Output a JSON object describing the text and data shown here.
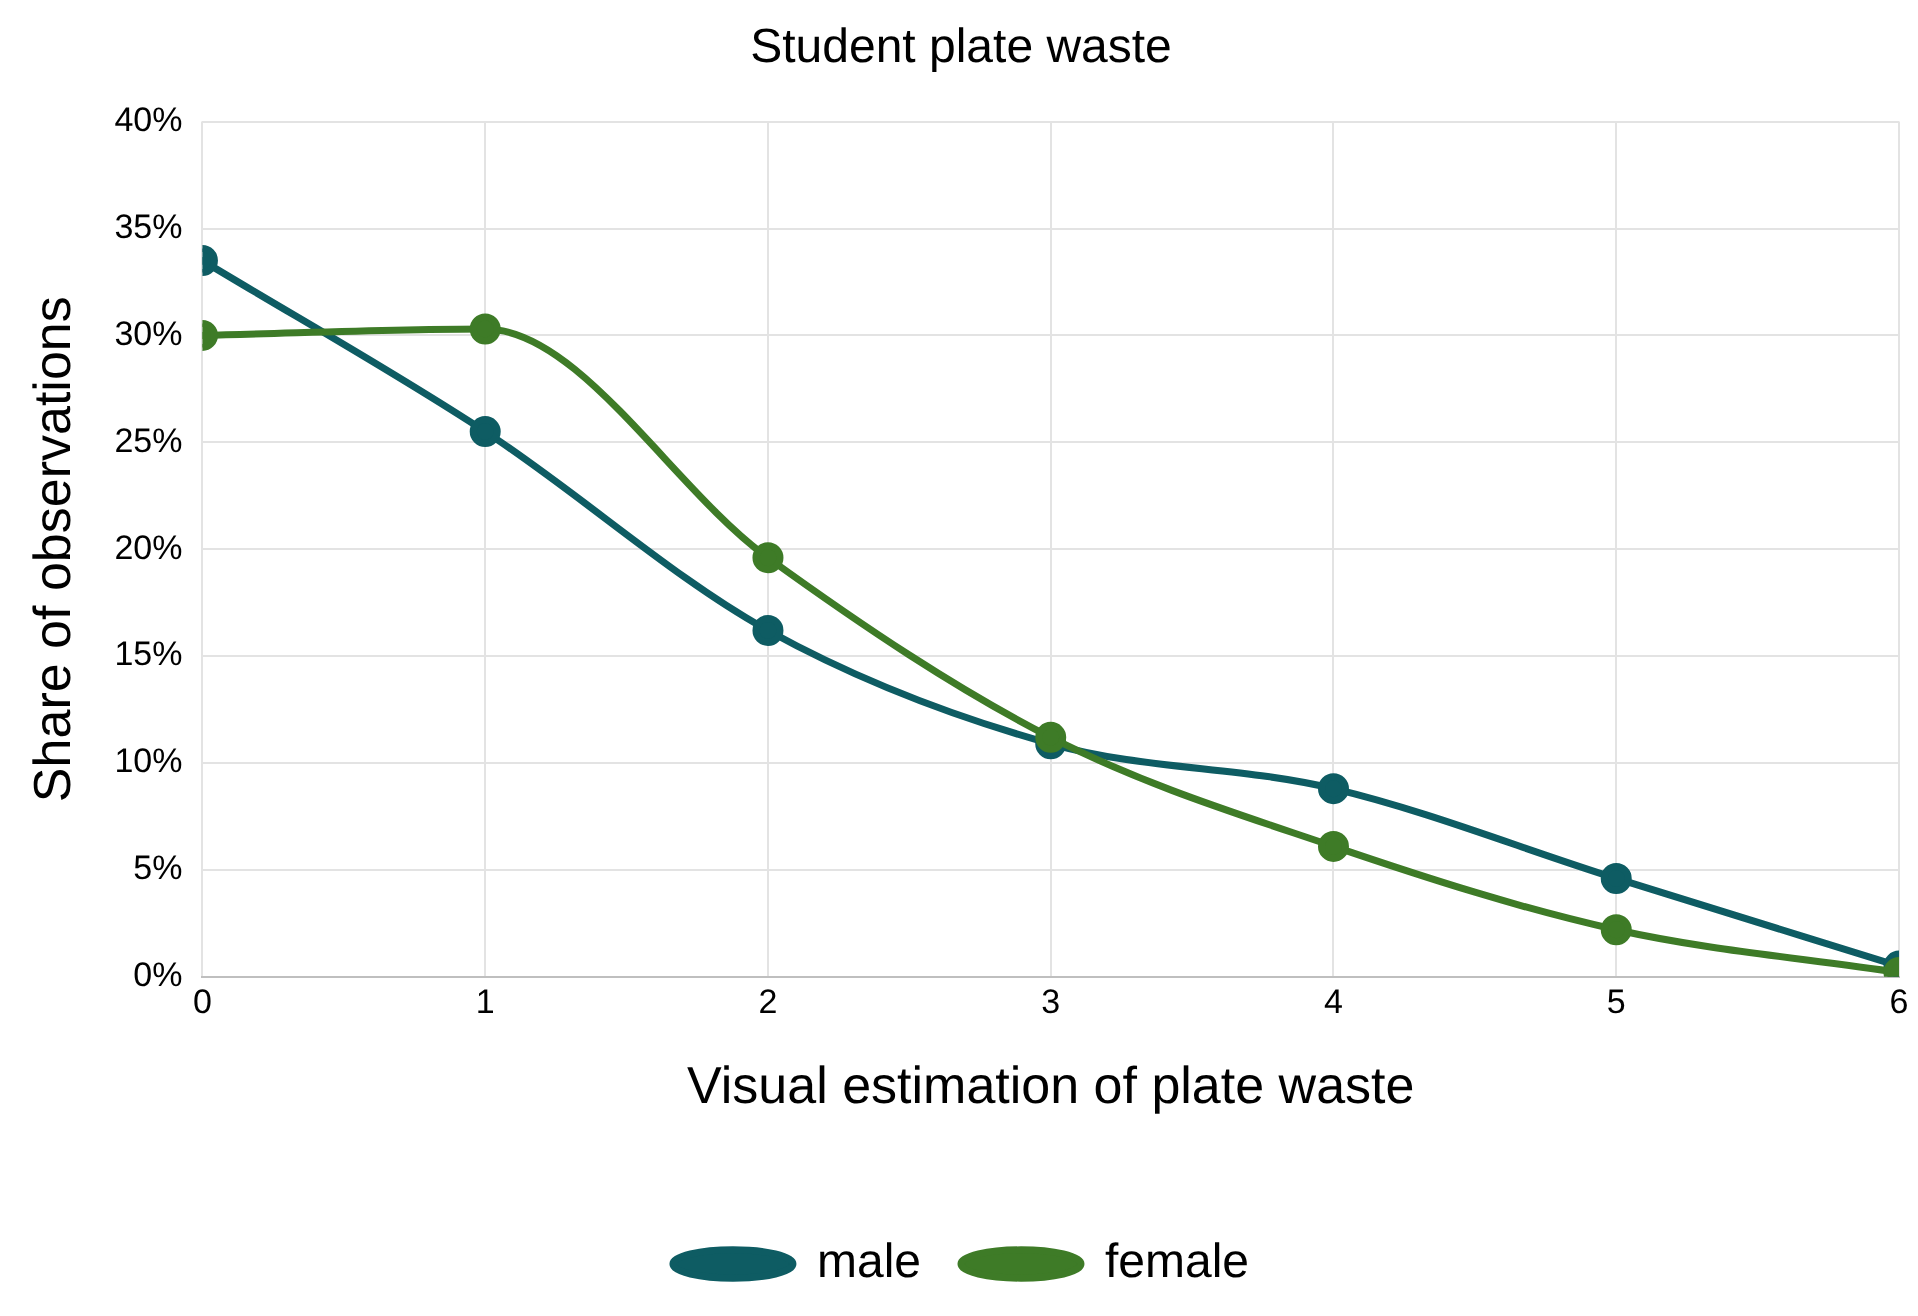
{
  "chart_data": {
    "type": "line",
    "title": "Student plate waste",
    "xlabel": "Visual estimation of plate waste",
    "ylabel": "Share of observations",
    "x": [
      0,
      1,
      2,
      3,
      4,
      5,
      6
    ],
    "series": [
      {
        "name": "male",
        "color": "#0e5c63",
        "values": [
          33.5,
          25.5,
          16.2,
          10.9,
          8.8,
          4.6,
          0.5
        ]
      },
      {
        "name": "female",
        "color": "#3e7b27",
        "values": [
          30.0,
          30.3,
          19.6,
          11.2,
          6.1,
          2.2,
          0.2
        ]
      }
    ],
    "xlim": [
      0,
      6
    ],
    "xticks": [
      0,
      1,
      2,
      3,
      4,
      5,
      6
    ],
    "ylim": [
      0,
      40
    ],
    "yticks": [
      {
        "value": 0,
        "label": "0%"
      },
      {
        "value": 5,
        "label": "5%"
      },
      {
        "value": 10,
        "label": "10%"
      },
      {
        "value": 15,
        "label": "15%"
      },
      {
        "value": 20,
        "label": "20%"
      },
      {
        "value": 25,
        "label": "25%"
      },
      {
        "value": 30,
        "label": "30%"
      },
      {
        "value": 35,
        "label": "35%"
      },
      {
        "value": 40,
        "label": "40%"
      }
    ],
    "grid": true,
    "legend": "bottom",
    "marker": "circle",
    "line_style": "solid"
  }
}
